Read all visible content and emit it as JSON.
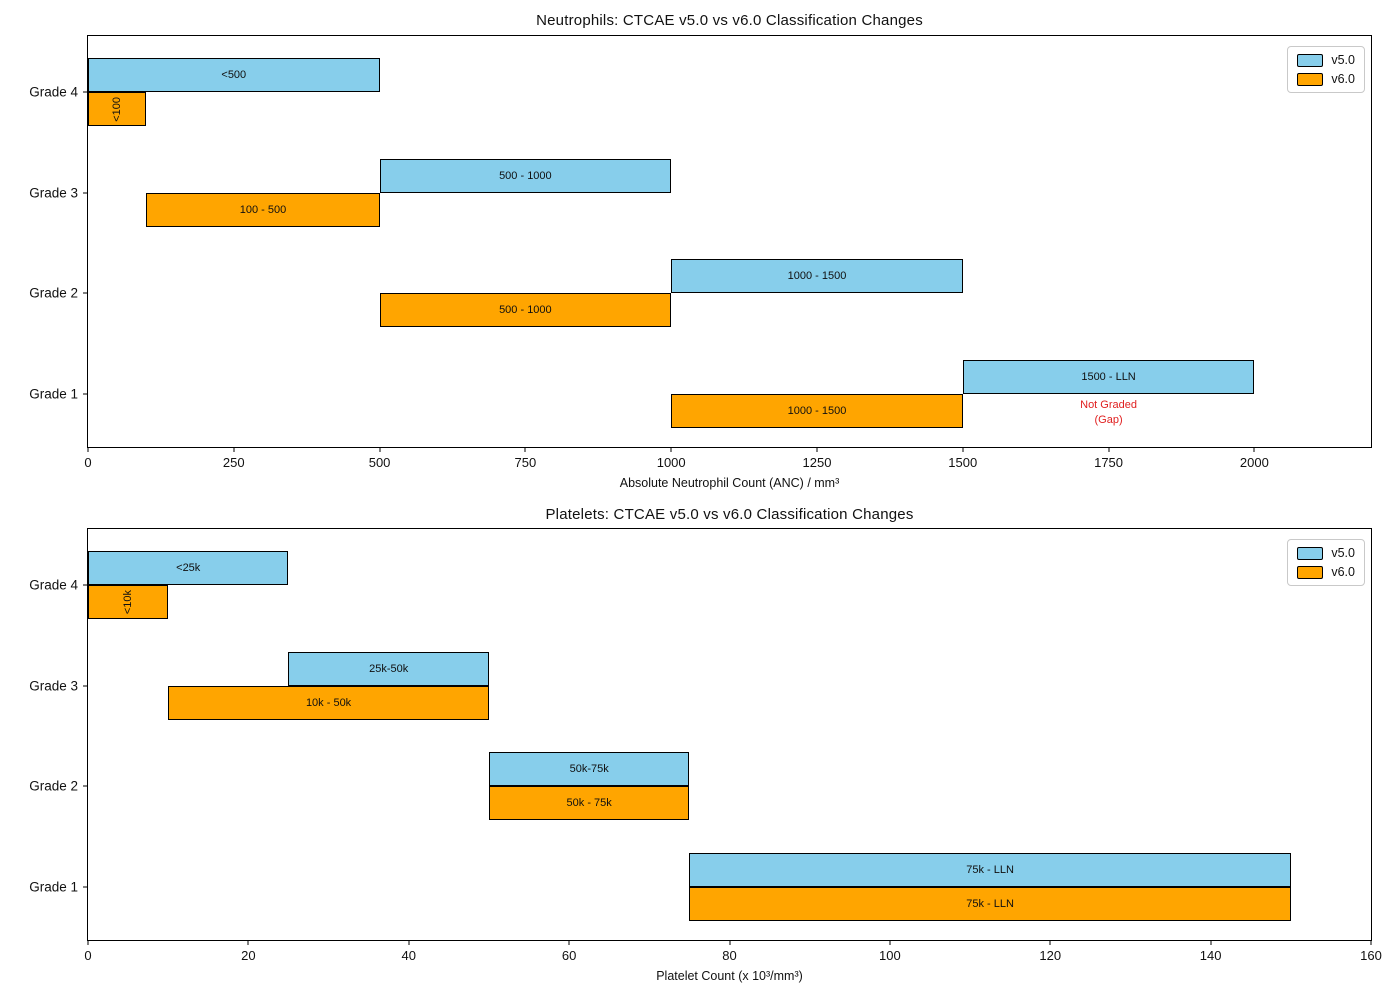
{
  "figure": {
    "background": "#ffffff"
  },
  "colors": {
    "v5": "#87CEEB",
    "v6": "#FFA500",
    "bar_edge": "#000000",
    "annotation_red": "#e02020",
    "legend_border": "#c9c9c9"
  },
  "chart_data": [
    {
      "type": "bar",
      "variant": "horizontal-range-comparison",
      "title": "Neutrophils: CTCAE v5.0 vs v6.0 Classification Changes",
      "xlabel": "Absolute Neutrophil Count (ANC) / mm³",
      "xlim": [
        0,
        2200
      ],
      "xticks": [
        0,
        250,
        500,
        750,
        1000,
        1250,
        1500,
        1750,
        2000
      ],
      "categories": [
        "Grade 4",
        "Grade 3",
        "Grade 2",
        "Grade 1"
      ],
      "grid": false,
      "legend": {
        "position": "upper right",
        "items": [
          {
            "label": "v5.0",
            "color": "#87CEEB"
          },
          {
            "label": "v6.0",
            "color": "#FFA500"
          }
        ]
      },
      "series": [
        {
          "name": "v5.0",
          "color": "#87CEEB",
          "row": "upper",
          "ranges": [
            {
              "category": "Grade 4",
              "start": 0,
              "end": 500,
              "label": "<500"
            },
            {
              "category": "Grade 3",
              "start": 500,
              "end": 1000,
              "label": "500 - 1000"
            },
            {
              "category": "Grade 2",
              "start": 1000,
              "end": 1500,
              "label": "1000 - 1500"
            },
            {
              "category": "Grade 1",
              "start": 1500,
              "end": 2000,
              "label": "1500 - LLN"
            }
          ]
        },
        {
          "name": "v6.0",
          "color": "#FFA500",
          "row": "lower",
          "ranges": [
            {
              "category": "Grade 4",
              "start": 0,
              "end": 100,
              "label": "<100",
              "label_rotated": true
            },
            {
              "category": "Grade 3",
              "start": 100,
              "end": 500,
              "label": "100 - 500"
            },
            {
              "category": "Grade 2",
              "start": 500,
              "end": 1000,
              "label": "500 - 1000"
            },
            {
              "category": "Grade 1",
              "start": 1000,
              "end": 1500,
              "label": "1000 - 1500"
            }
          ]
        }
      ],
      "annotations": [
        {
          "lines": [
            "Not Graded",
            "(Gap)"
          ],
          "x": 1750,
          "category": "Grade 1",
          "row": "lower",
          "color": "#e02020"
        }
      ]
    },
    {
      "type": "bar",
      "variant": "horizontal-range-comparison",
      "title": "Platelets: CTCAE v5.0 vs v6.0 Classification Changes",
      "xlabel": "Platelet Count (x 10³/mm³)",
      "xlim": [
        0,
        160
      ],
      "xticks": [
        0,
        20,
        40,
        60,
        80,
        100,
        120,
        140,
        160
      ],
      "categories": [
        "Grade 4",
        "Grade 3",
        "Grade 2",
        "Grade 1"
      ],
      "grid": false,
      "legend": {
        "position": "upper right",
        "items": [
          {
            "label": "v5.0",
            "color": "#87CEEB"
          },
          {
            "label": "v6.0",
            "color": "#FFA500"
          }
        ]
      },
      "series": [
        {
          "name": "v5.0",
          "color": "#87CEEB",
          "row": "upper",
          "ranges": [
            {
              "category": "Grade 4",
              "start": 0,
              "end": 25,
              "label": "<25k"
            },
            {
              "category": "Grade 3",
              "start": 25,
              "end": 50,
              "label": "25k-50k"
            },
            {
              "category": "Grade 2",
              "start": 50,
              "end": 75,
              "label": "50k-75k"
            },
            {
              "category": "Grade 1",
              "start": 75,
              "end": 150,
              "label": "75k - LLN"
            }
          ]
        },
        {
          "name": "v6.0",
          "color": "#FFA500",
          "row": "lower",
          "ranges": [
            {
              "category": "Grade 4",
              "start": 0,
              "end": 10,
              "label": "<10k",
              "label_rotated": true
            },
            {
              "category": "Grade 3",
              "start": 10,
              "end": 50,
              "label": "10k - 50k"
            },
            {
              "category": "Grade 2",
              "start": 50,
              "end": 75,
              "label": "50k - 75k"
            },
            {
              "category": "Grade 1",
              "start": 75,
              "end": 150,
              "label": "75k - LLN"
            }
          ]
        }
      ],
      "annotations": []
    }
  ]
}
